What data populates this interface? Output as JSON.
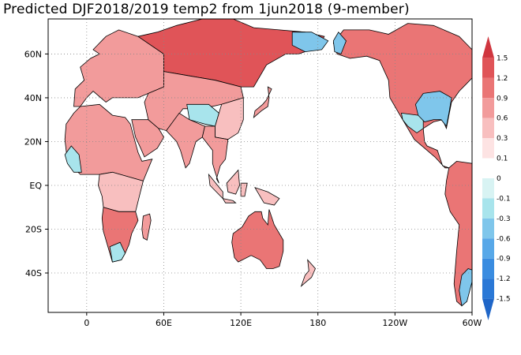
{
  "title": "Predicted DJF2018/2019 temp2 from 1jun2018 (9-member)",
  "map": {
    "lon_range": [
      -30,
      300
    ],
    "lat_range": [
      -58,
      76
    ],
    "xticks": [
      {
        "lon": 0,
        "label": "0"
      },
      {
        "lon": 60,
        "label": "60E"
      },
      {
        "lon": 120,
        "label": "120E"
      },
      {
        "lon": 180,
        "label": "180"
      },
      {
        "lon": 240,
        "label": "120W"
      },
      {
        "lon": 300,
        "label": "60W"
      }
    ],
    "yticks": [
      {
        "lat": 60,
        "label": "60N"
      },
      {
        "lat": 40,
        "label": "40N"
      },
      {
        "lat": 20,
        "label": "20N"
      },
      {
        "lat": 0,
        "label": "EQ"
      },
      {
        "lat": -20,
        "label": "20S"
      },
      {
        "lat": -40,
        "label": "40S"
      }
    ],
    "gridlines": "dotted"
  },
  "colorbar": {
    "levels": [
      "1.5",
      "1.2",
      "0.9",
      "0.6",
      "0.3",
      "0.1",
      "0",
      "-0.1",
      "-0.3",
      "-0.6",
      "-0.9",
      "-1.2",
      "-1.5"
    ],
    "colors": [
      "#d0363f",
      "#e05458",
      "#ea7575",
      "#f29b9b",
      "#f8bfbf",
      "#fde3e3",
      "#ffffff",
      "#d8f3f3",
      "#a8e4ec",
      "#7fc6eb",
      "#58a8e8",
      "#3a8ce0",
      "#2a78d6",
      "#1f66c8"
    ]
  },
  "regions": [
    {
      "name": "north-america",
      "anomaly": 1.0
    },
    {
      "name": "us-southeast",
      "anomaly": -0.6
    },
    {
      "name": "us-southwest",
      "anomaly": -0.3
    },
    {
      "name": "south-america",
      "anomaly": 0.9
    },
    {
      "name": "patagonia",
      "anomaly": -0.4
    },
    {
      "name": "greenland",
      "anomaly": 0.6
    },
    {
      "name": "europe",
      "anomaly": 0.8
    },
    {
      "name": "africa-north",
      "anomaly": 0.6
    },
    {
      "name": "africa-central",
      "anomaly": 0.4
    },
    {
      "name": "africa-south",
      "anomaly": 0.9
    },
    {
      "name": "southern-africa-tip",
      "anomaly": -0.3
    },
    {
      "name": "arabia",
      "anomaly": 0.6
    },
    {
      "name": "siberia",
      "anomaly": 1.2
    },
    {
      "name": "central-asia",
      "anomaly": 0.8
    },
    {
      "name": "tibet",
      "anomaly": -0.3
    },
    {
      "name": "india",
      "anomaly": 0.6
    },
    {
      "name": "southeast-asia",
      "anomaly": 0.6
    },
    {
      "name": "china-east",
      "anomaly": 0.5
    },
    {
      "name": "east-siberia",
      "anomaly": -0.5
    },
    {
      "name": "alaska-west",
      "anomaly": -0.6
    },
    {
      "name": "australia",
      "anomaly": 1.0
    },
    {
      "name": "indonesia",
      "anomaly": 0.5
    },
    {
      "name": "japan",
      "anomaly": 0.6
    },
    {
      "name": "madagascar",
      "anomaly": 0.6
    },
    {
      "name": "new-zealand",
      "anomaly": 0.3
    },
    {
      "name": "west-africa-coast",
      "anomaly": -0.2
    }
  ]
}
